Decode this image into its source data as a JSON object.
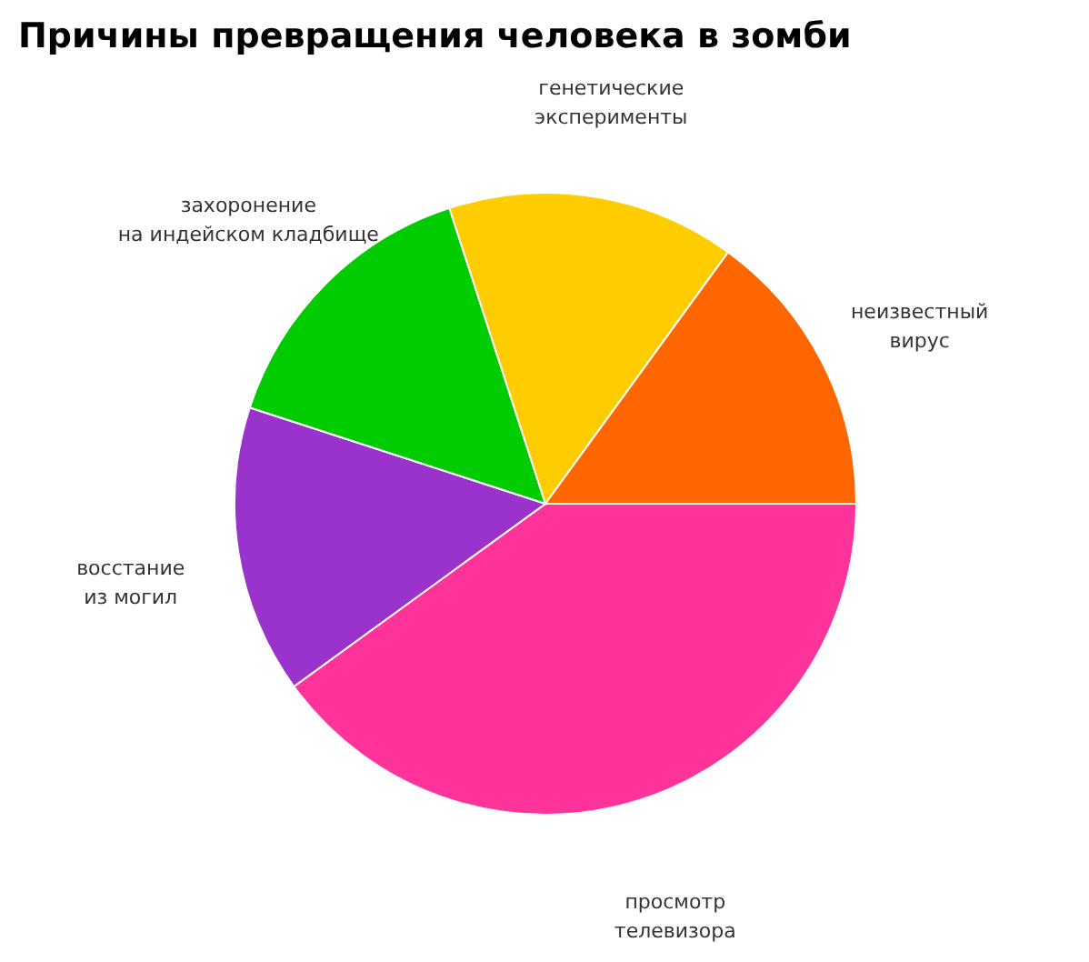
{
  "chart_data": {
    "type": "pie",
    "title": "Причины превращения человека в зомби",
    "categories": [
      "просмотр телевизора",
      "восстание из могил",
      "захоронение на  индейском кладбище",
      "генетические эксперименты",
      "неизвестный вирус"
    ],
    "values": [
      40,
      15,
      15,
      15,
      15
    ],
    "colors": [
      "#ff3399",
      "#9933cc",
      "#00cc00",
      "#ffcc00",
      "#ff6600"
    ]
  }
}
